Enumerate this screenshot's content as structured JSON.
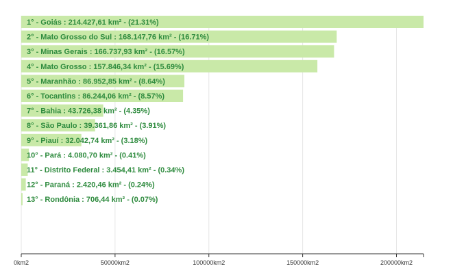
{
  "chart_data": {
    "type": "bar",
    "orientation": "horizontal",
    "categories": [
      "Goiás",
      "Mato Grosso do Sul",
      "Minas Gerais",
      "Mato Grosso",
      "Maranhão",
      "Tocantins",
      "Bahia",
      "São Paulo",
      "Piauí",
      "Pará",
      "Distrito Federal",
      "Paraná",
      "Rondônia"
    ],
    "values": [
      214427.61,
      168147.76,
      166737.93,
      157846.34,
      86952.85,
      86244.06,
      43726.38,
      39361.86,
      32042.74,
      4080.7,
      3454.41,
      2420.46,
      706.44
    ],
    "labels": [
      "1° - Goiás : 214.427,61 km² - (21.31%)",
      "2° - Mato Grosso do Sul : 168.147,76 km² - (16.71%)",
      "3° - Minas Gerais : 166.737,93 km² - (16.57%)",
      "4° - Mato Grosso : 157.846,34 km² - (15.69%)",
      "5° - Maranhão : 86.952,85 km² - (8.64%)",
      "6° - Tocantins : 86.244,06 km² - (8.57%)",
      "7° - Bahia : 43.726,38 km² - (4.35%)",
      "8° - São Paulo : 39.361,86 km² - (3.91%)",
      "9° - Piauí : 32.042,74 km² - (3.18%)",
      "10° - Pará : 4.080,70 km² - (0.41%)",
      "11° - Distrito Federal : 3.454,41 km² - (0.34%)",
      "12° - Paraná : 2.420,46 km² - (0.24%)",
      "13° - Rondônia : 706,44 km² - (0.07%)"
    ],
    "xlim": [
      0,
      214427.61
    ],
    "xticks": [
      0,
      50000,
      100000,
      150000,
      200000
    ],
    "xtick_labels": [
      "0km2",
      "50000km2",
      "100000km2",
      "150000km2",
      "200000km2"
    ],
    "title": "",
    "xlabel": "",
    "ylabel": "",
    "grid": "vertical",
    "colors": {
      "bar": "#c9e9a8",
      "label": "#2e8b3e",
      "grid": "#e6e6e6",
      "axis": "#333333"
    }
  }
}
